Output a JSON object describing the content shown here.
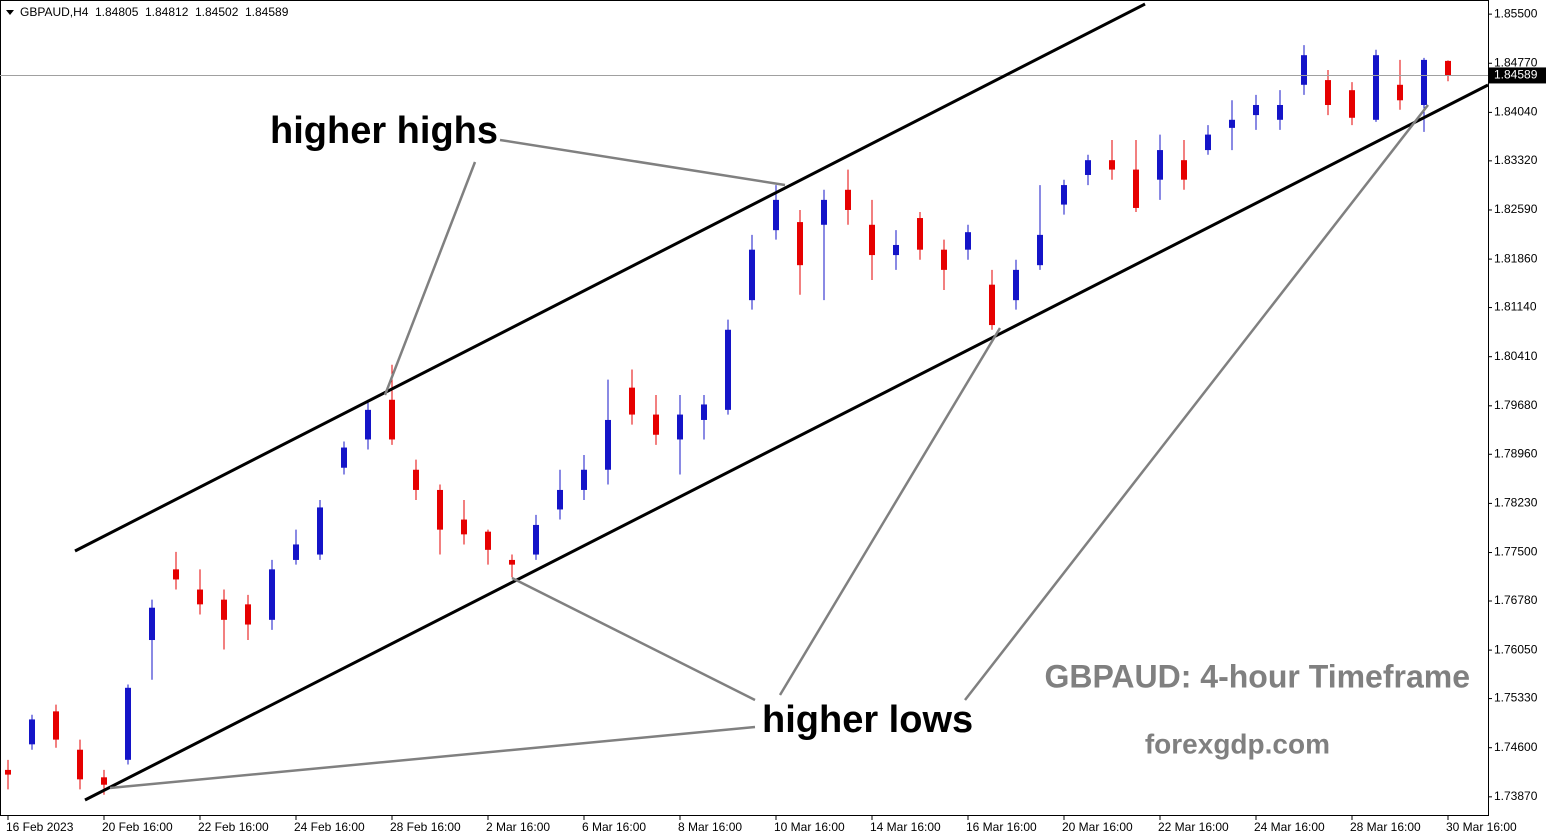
{
  "chart_data": {
    "type": "candlestick",
    "symbol": "GBPAUD,H4",
    "annotations": [
      "higher highs",
      "higher lows",
      "GBPAUD: 4-hour Timeframe",
      "forexgdp.com"
    ],
    "up_color": "#1414c8",
    "down_color": "#e60000",
    "categories": [
      "16 Feb 2023",
      null,
      null,
      null,
      "20 Feb 16:00",
      null,
      null,
      null,
      "22 Feb 16:00",
      null,
      null,
      null,
      "24 Feb 16:00",
      null,
      null,
      null,
      "28 Feb 16:00",
      null,
      null,
      null,
      "2 Mar 16:00",
      null,
      null,
      null,
      "6 Mar 16:00",
      null,
      null,
      null,
      "8 Mar 16:00",
      null,
      null,
      null,
      "10 Mar 16:00",
      null,
      null,
      null,
      "14 Mar 16:00",
      null,
      null,
      null,
      "16 Mar 16:00",
      null,
      null,
      null,
      "20 Mar 16:00",
      null,
      null,
      null,
      "22 Mar 16:00",
      null,
      null,
      null,
      "24 Mar 16:00",
      null,
      null,
      null,
      "28 Mar 16:00",
      null,
      null,
      null,
      "30 Mar 16:00"
    ],
    "open": [
      1.7427,
      1.7465,
      1.7514,
      1.7457,
      1.7416,
      1.7442,
      1.762,
      1.7725,
      1.7695,
      1.768,
      1.7673,
      1.765,
      1.7739,
      1.7747,
      1.7876,
      1.7918,
      1.7977,
      1.7873,
      1.7843,
      1.7799,
      1.7781,
      1.7739,
      1.7747,
      1.7814,
      1.7843,
      1.7873,
      1.7995,
      1.7955,
      1.7918,
      1.7947,
      1.7962,
      1.8125,
      1.8229,
      1.8241,
      1.8237,
      1.8289,
      1.8237,
      1.8192,
      1.8247,
      1.82,
      1.82,
      1.8148,
      1.8125,
      1.8177,
      1.8267,
      1.8311,
      1.8333,
      1.8319,
      1.8304,
      1.8333,
      1.8348,
      1.8381,
      1.84,
      1.8393,
      1.8445,
      1.8452,
      1.8437,
      1.8393,
      1.8445,
      1.8415,
      1.84805
    ],
    "high": [
      1.7442,
      1.7509,
      1.7524,
      1.7472,
      1.7427,
      1.7554,
      1.768,
      1.7751,
      1.7725,
      1.7695,
      1.7687,
      1.7739,
      1.7784,
      1.7828,
      1.7915,
      1.7977,
      1.8029,
      1.7888,
      1.7851,
      1.7828,
      1.7784,
      1.7747,
      1.7806,
      1.7873,
      1.7895,
      1.8007,
      1.8022,
      1.7984,
      1.7984,
      1.7984,
      1.8096,
      1.8222,
      1.8296,
      1.8259,
      1.8289,
      1.8319,
      1.8274,
      1.8229,
      1.8256,
      1.8215,
      1.8237,
      1.817,
      1.8185,
      1.8296,
      1.8304,
      1.8341,
      1.8363,
      1.8363,
      1.8371,
      1.8363,
      1.8385,
      1.8422,
      1.843,
      1.8437,
      1.8504,
      1.8467,
      1.8449,
      1.8497,
      1.8482,
      1.8485,
      1.84812
    ],
    "low": [
      1.7398,
      1.7457,
      1.746,
      1.7398,
      1.739,
      1.7435,
      1.7561,
      1.7695,
      1.7658,
      1.7606,
      1.762,
      1.7635,
      1.7732,
      1.7739,
      1.7866,
      1.7903,
      1.791,
      1.7828,
      1.7747,
      1.7762,
      1.7732,
      1.7713,
      1.7739,
      1.7799,
      1.7828,
      1.7851,
      1.794,
      1.791,
      1.7866,
      1.7918,
      1.7955,
      1.8111,
      1.8215,
      1.8133,
      1.8125,
      1.8237,
      1.8155,
      1.817,
      1.8185,
      1.814,
      1.8185,
      1.8081,
      1.8111,
      1.817,
      1.8252,
      1.8296,
      1.8304,
      1.8256,
      1.8274,
      1.8289,
      1.8341,
      1.8348,
      1.8378,
      1.8378,
      1.843,
      1.84,
      1.8385,
      1.839,
      1.8408,
      1.8375,
      1.84502
    ],
    "close": [
      1.742,
      1.7502,
      1.7472,
      1.7413,
      1.7405,
      1.7549,
      1.7668,
      1.771,
      1.7673,
      1.765,
      1.7643,
      1.7725,
      1.7762,
      1.7817,
      1.7906,
      1.7962,
      1.7918,
      1.7843,
      1.7784,
      1.7777,
      1.7754,
      1.7732,
      1.7791,
      1.7843,
      1.7873,
      1.7947,
      1.7955,
      1.7925,
      1.7955,
      1.797,
      1.8081,
      1.82,
      1.8274,
      1.8177,
      1.8274,
      1.8259,
      1.8192,
      1.8207,
      1.82,
      1.817,
      1.8226,
      1.8088,
      1.817,
      1.8222,
      1.8296,
      1.8333,
      1.8319,
      1.8262,
      1.8348,
      1.8304,
      1.8371,
      1.8393,
      1.8415,
      1.8415,
      1.8489,
      1.8415,
      1.8396,
      1.8489,
      1.8422,
      1.8482,
      1.84589
    ],
    "ylim": [
      1.736,
      1.8571
    ],
    "yticks": [
      {
        "value": 1.855,
        "label": "1.85500"
      },
      {
        "value": 1.8477,
        "label": "1.84770"
      },
      {
        "value": 1.8404,
        "label": "1.84040"
      },
      {
        "value": 1.8332,
        "label": "1.83320"
      },
      {
        "value": 1.8259,
        "label": "1.82590"
      },
      {
        "value": 1.8186,
        "label": "1.81860"
      },
      {
        "value": 1.8114,
        "label": "1.81140"
      },
      {
        "value": 1.8041,
        "label": "1.80410"
      },
      {
        "value": 1.7968,
        "label": "1.79680"
      },
      {
        "value": 1.7896,
        "label": "1.78960"
      },
      {
        "value": 1.7823,
        "label": "1.78230"
      },
      {
        "value": 1.775,
        "label": "1.77500"
      },
      {
        "value": 1.7678,
        "label": "1.76780"
      },
      {
        "value": 1.7605,
        "label": "1.76050"
      },
      {
        "value": 1.7533,
        "label": "1.75330"
      },
      {
        "value": 1.746,
        "label": "1.74600"
      },
      {
        "value": 1.7387,
        "label": "1.73870"
      }
    ]
  }
}
